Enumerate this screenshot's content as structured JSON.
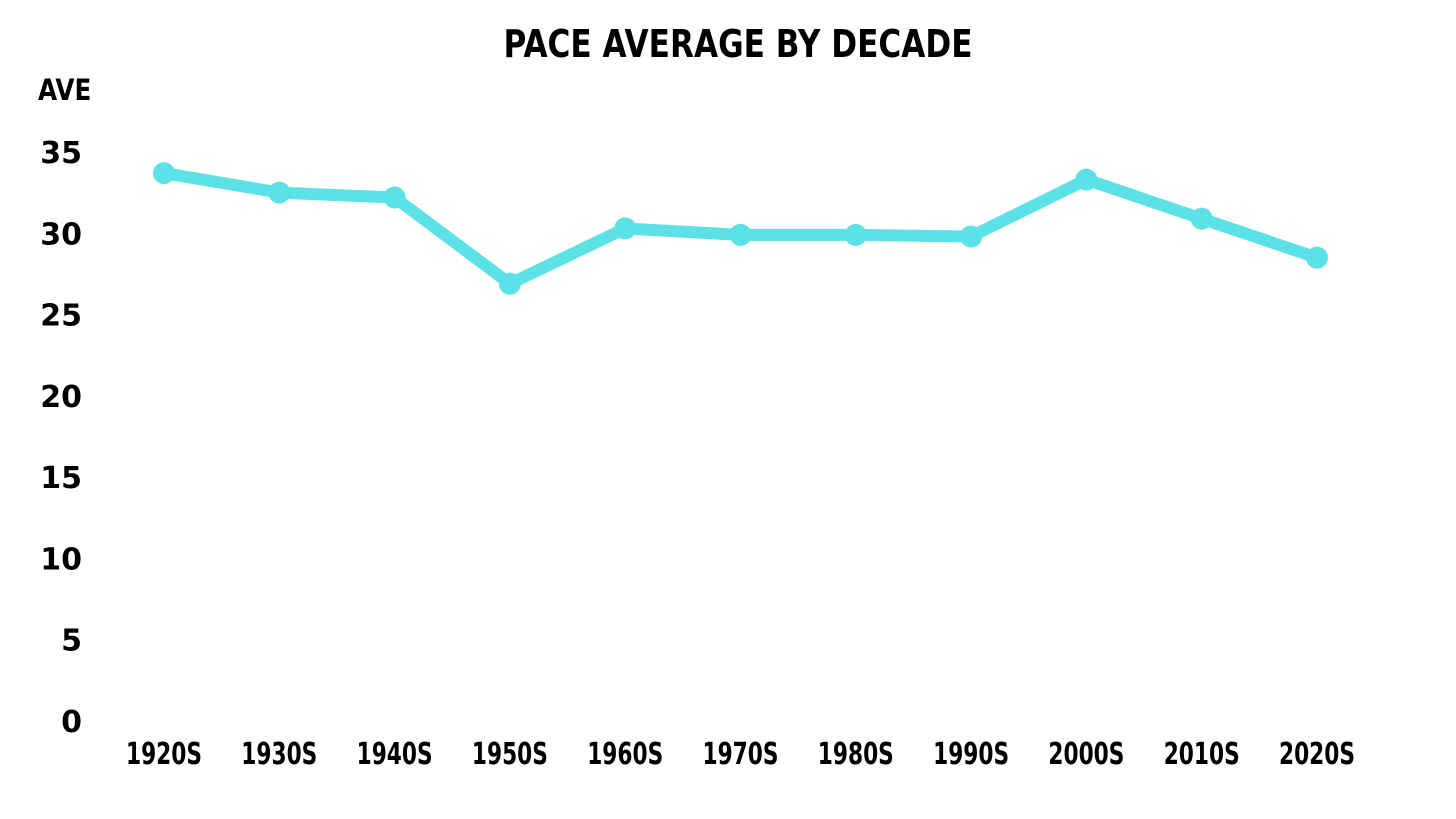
{
  "chart_data": {
    "type": "line",
    "title": "PACE AVERAGE BY DECADE",
    "ylabel": "AVE",
    "xlabel": "",
    "categories": [
      "1920S",
      "1930S",
      "1940S",
      "1950S",
      "1960S",
      "1970S",
      "1980S",
      "1990S",
      "2000S",
      "2010S",
      "2020S"
    ],
    "series": [
      {
        "values": [
          33.7,
          32.5,
          32.2,
          26.9,
          30.3,
          29.9,
          29.9,
          29.8,
          33.3,
          30.9,
          28.5
        ],
        "color": "#5ce1e6"
      }
    ],
    "ylim": [
      0,
      35
    ],
    "yticks": [
      "0",
      "5",
      "10",
      "15",
      "20",
      "25",
      "30",
      "35"
    ],
    "grid": false,
    "legend": "none"
  }
}
